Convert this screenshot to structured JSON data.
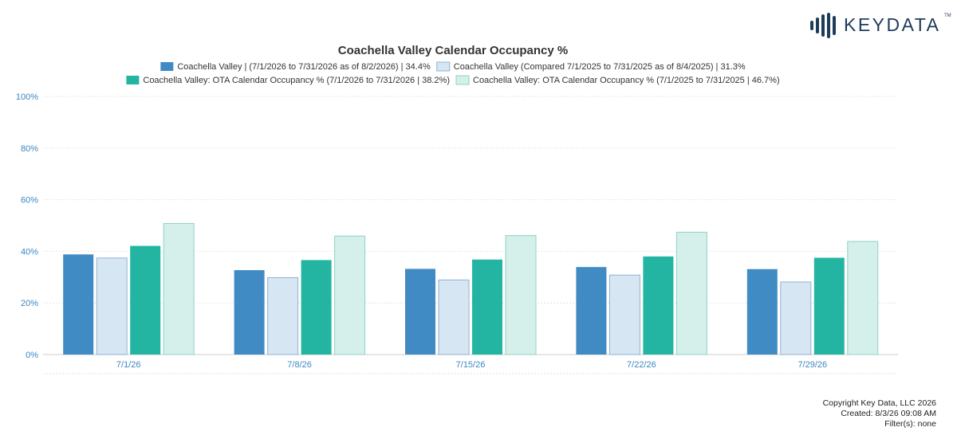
{
  "brand": {
    "name": "KEYDATA",
    "trademark": "TM",
    "color": "#1f3b5a"
  },
  "chart_data": {
    "type": "bar",
    "title": "Coachella Valley Calendar Occupancy %",
    "categories": [
      "7/1/26",
      "7/8/26",
      "7/15/26",
      "7/22/26",
      "7/29/26"
    ],
    "ylim": [
      0,
      100
    ],
    "yticks": [
      "0%",
      "20%",
      "40%",
      "60%",
      "80%",
      "100%"
    ],
    "ytick_values": [
      0,
      20,
      40,
      60,
      80,
      100
    ],
    "grid": true,
    "legend_position": "top",
    "series": [
      {
        "name": "Coachella Valley | (7/1/2026 to 7/31/2026 as of 8/2/2026) | 34.4%",
        "color": "#418bc4",
        "values": [
          38.8,
          32.7,
          33.2,
          33.9,
          33.1
        ]
      },
      {
        "name": "Coachella Valley (Compared 7/1/2025 to 7/31/2025 as of 8/4/2025) | 31.3%",
        "color": "#d6e6f3",
        "values": [
          37.4,
          29.8,
          28.9,
          30.8,
          28.1
        ]
      },
      {
        "name": "Coachella Valley: OTA Calendar Occupancy % (7/1/2026 to 7/31/2026 | 38.2%)",
        "color": "#24b5a2",
        "values": [
          42.1,
          36.6,
          36.8,
          38.0,
          37.5
        ]
      },
      {
        "name": "Coachella Valley: OTA Calendar Occupancy % (7/1/2025 to 7/31/2025 | 46.7%)",
        "color": "#d5efea",
        "values": [
          50.8,
          45.9,
          46.1,
          47.4,
          43.8
        ]
      }
    ]
  },
  "footer": {
    "copyright": "Copyright Key Data, LLC 2026",
    "created": "Created: 8/3/26 09:08 AM",
    "filters": "Filter(s): none"
  }
}
